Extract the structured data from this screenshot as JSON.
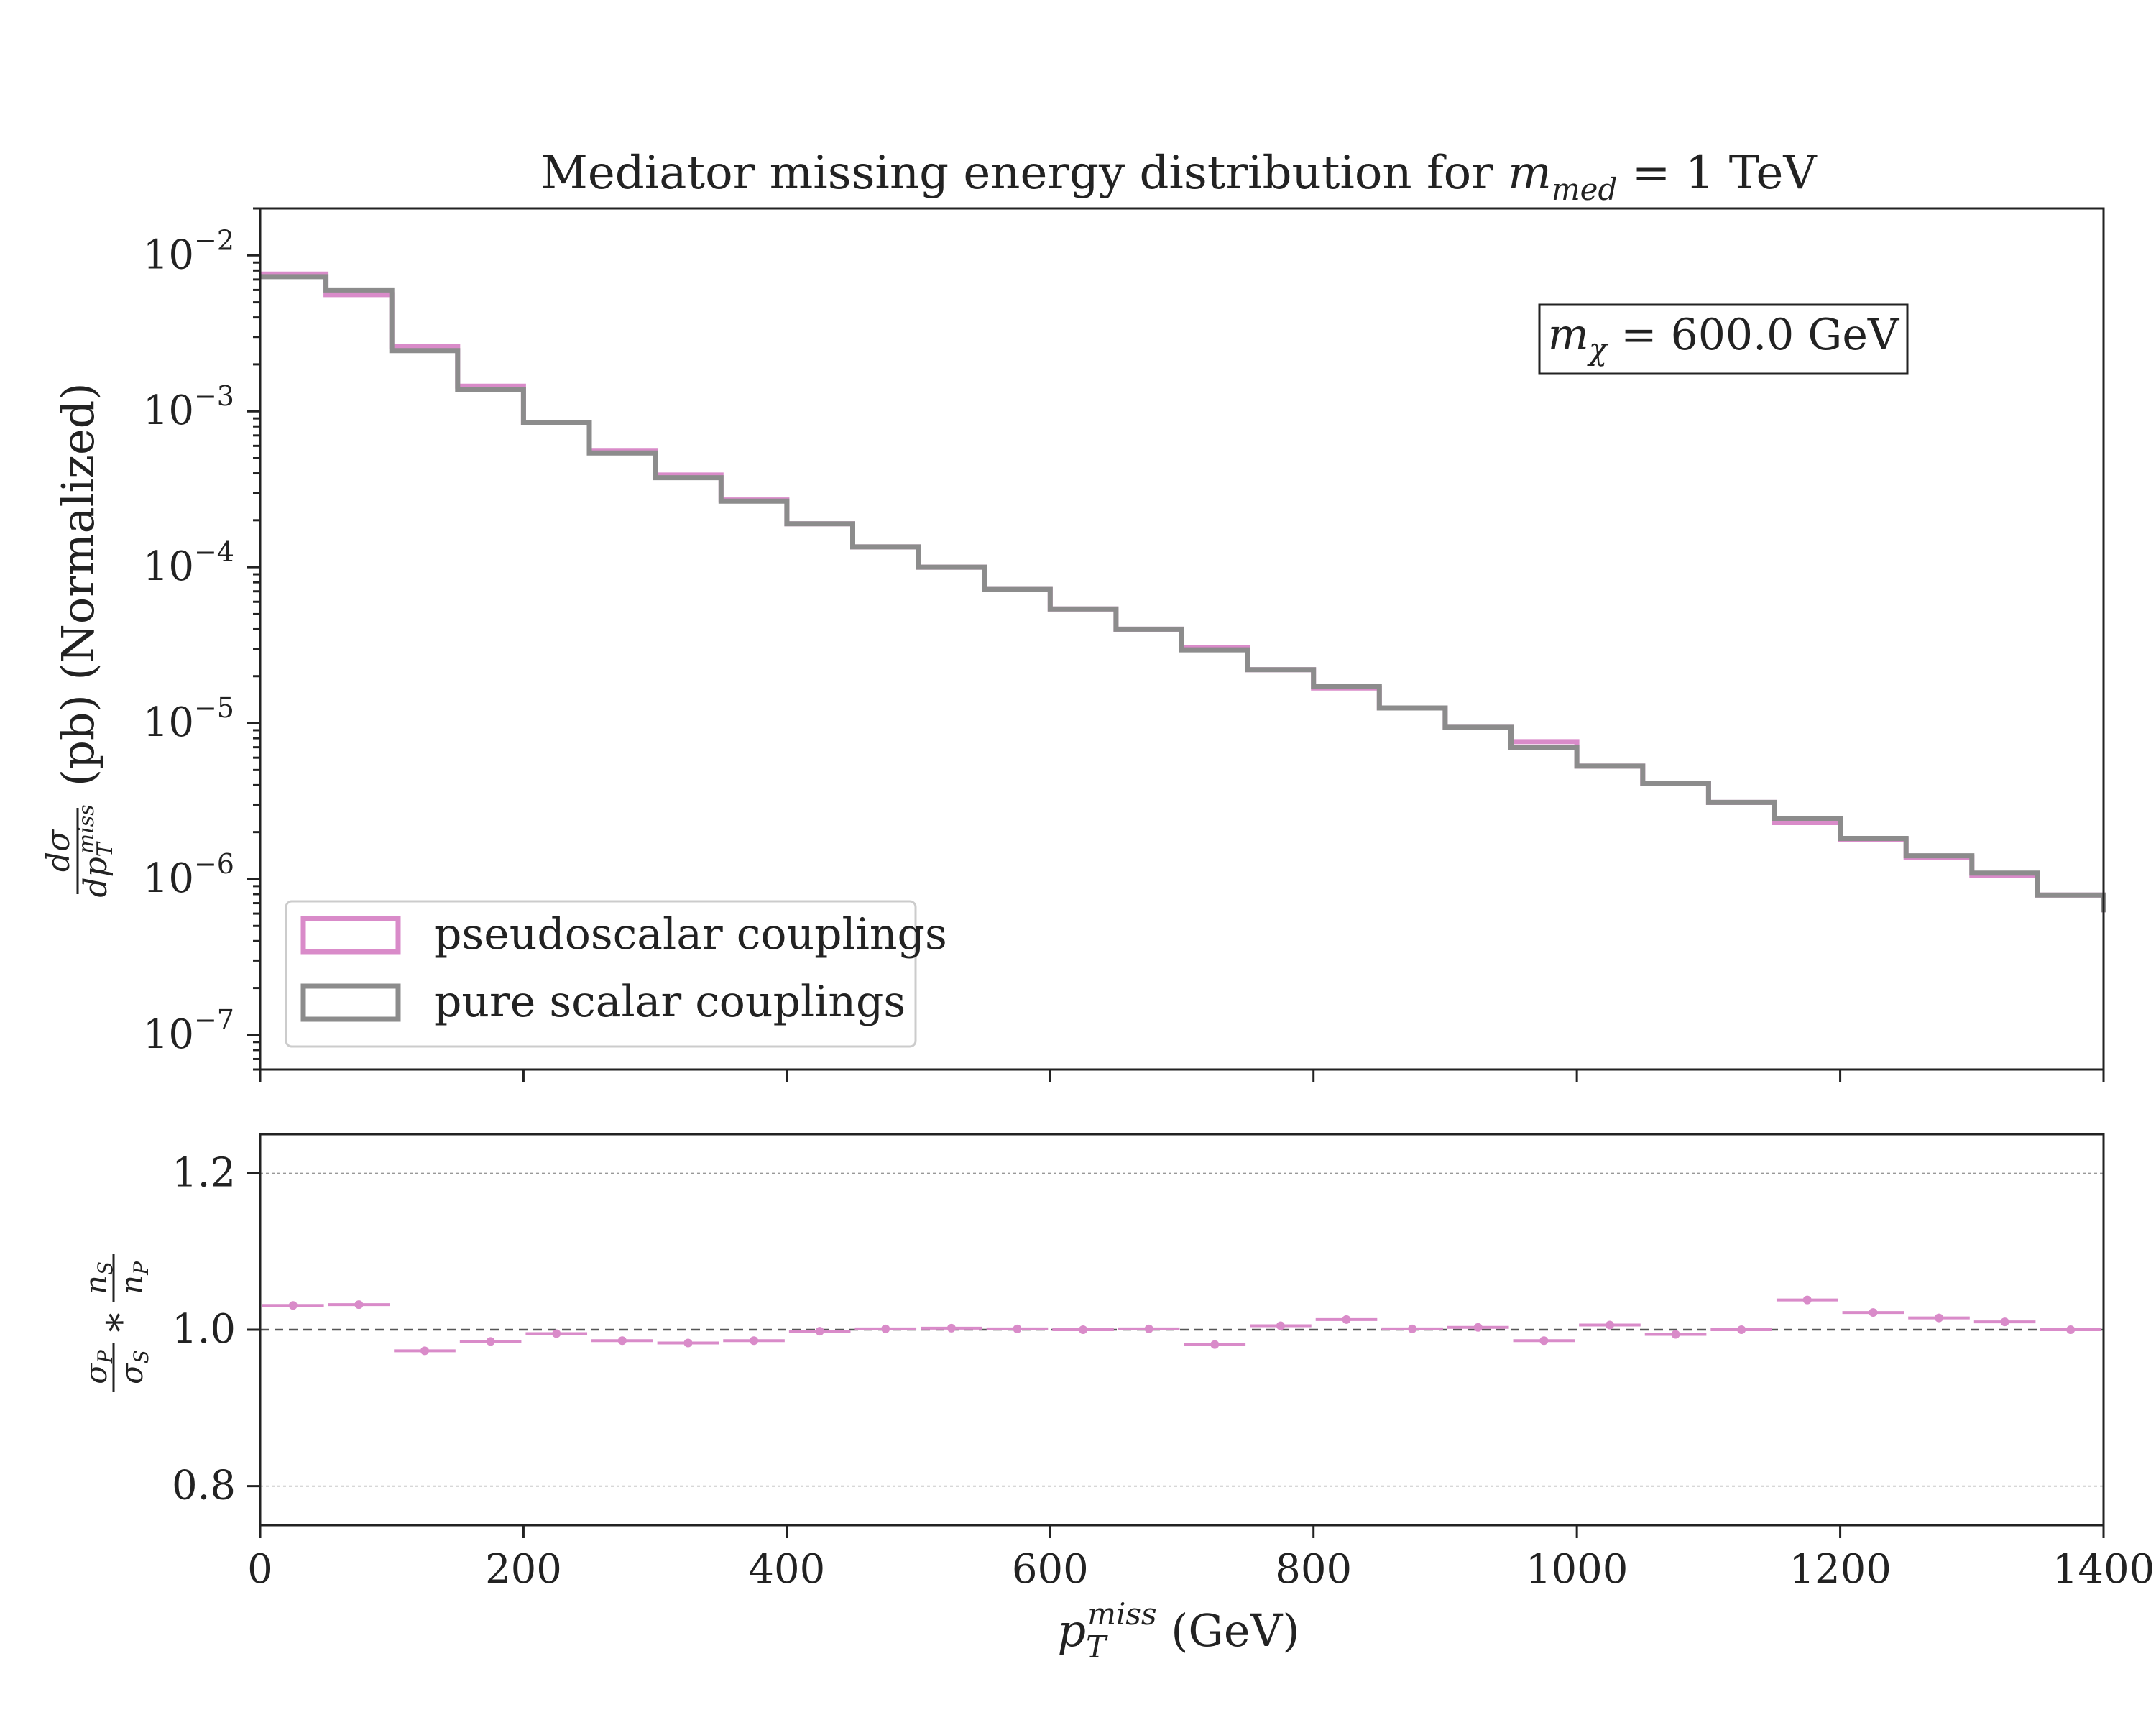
{
  "chart_data": [
    {
      "type": "line",
      "title": "Mediator missing energy distribution for m_med = 1 TeV",
      "title_parts": {
        "text": "Mediator missing energy distribution for ",
        "var": "m",
        "sub": "med",
        "tail": " = 1 TeV"
      },
      "ylabel": "dσ/dp_T^miss (pb) (Normalized)",
      "ylabel_parts": {
        "unit": "(pb) (Normalized)"
      },
      "xlabel": "",
      "yscale": "log",
      "ylim": [
        6e-08,
        0.02
      ],
      "xlim": [
        0,
        1400
      ],
      "annotation": {
        "var": "m",
        "sub": "χ",
        "tail": " = 600.0 GeV"
      },
      "legend_position": "lower-left",
      "y_tick_labels": [
        {
          "value": 0.01,
          "exp": "−2"
        },
        {
          "value": 0.001,
          "exp": "−3"
        },
        {
          "value": 0.0001,
          "exp": "−4"
        },
        {
          "value": 1e-05,
          "exp": "−5"
        },
        {
          "value": 1e-06,
          "exp": "−6"
        },
        {
          "value": 1e-07,
          "exp": "−7"
        }
      ],
      "y_tick_base": "10",
      "bin_edges": [
        0,
        50,
        100,
        150,
        200,
        250,
        300,
        350,
        400,
        450,
        500,
        550,
        600,
        650,
        700,
        750,
        800,
        850,
        900,
        950,
        1000,
        1050,
        1100,
        1150,
        1200,
        1250,
        1300,
        1350,
        1400
      ],
      "series": [
        {
          "name": "pseudoscalar couplings",
          "color": "#d98bc9",
          "values": [
            0.0076,
            0.0056,
            0.0026,
            0.00145,
            0.00085,
            0.00056,
            0.00039,
            0.00027,
            0.00019,
            0.000135,
            0.0001,
            7.2e-05,
            5.4e-05,
            4e-05,
            3.05e-05,
            2.2e-05,
            1.68e-05,
            1.25e-05,
            9.4e-06,
            7.6e-06,
            5.3e-06,
            4.1e-06,
            3.1e-06,
            2.3e-06,
            1.8e-06,
            1.38e-06,
            1.05e-06,
            7.9e-07
          ]
        },
        {
          "name": "pure scalar couplings",
          "color": "#8c8c8c",
          "values": [
            0.0073,
            0.006,
            0.00245,
            0.00138,
            0.00085,
            0.00054,
            0.000375,
            0.000265,
            0.00019,
            0.000135,
            0.0001,
            7.2e-05,
            5.4e-05,
            4e-05,
            2.95e-05,
            2.2e-05,
            1.72e-05,
            1.25e-05,
            9.4e-06,
            7e-06,
            5.3e-06,
            4.1e-06,
            3.1e-06,
            2.45e-06,
            1.82e-06,
            1.41e-06,
            1.09e-06,
            7.9e-07
          ]
        }
      ]
    },
    {
      "type": "scatter",
      "title": "",
      "ylabel": "σP/σS ∗ nS/nP",
      "xlabel": "p_T^miss (GeV)",
      "xlabel_parts": {
        "var": "p",
        "sub": "T",
        "sup": "miss",
        "unit": " (GeV)"
      },
      "xlim": [
        0,
        1400
      ],
      "ylim": [
        0.75,
        1.25
      ],
      "x_ticks": [
        "0",
        "200",
        "400",
        "600",
        "800",
        "1000",
        "1200",
        "1400"
      ],
      "y_ticks": [
        "0.8",
        "1.0",
        "1.2"
      ],
      "grid": true,
      "reference_line": 1.0,
      "series": [
        {
          "name": "",
          "color": "#d98bc9",
          "x": [
            25,
            75,
            125,
            175,
            225,
            275,
            325,
            375,
            425,
            475,
            525,
            575,
            625,
            675,
            725,
            775,
            825,
            875,
            925,
            975,
            1025,
            1075,
            1125,
            1175,
            1225,
            1275,
            1325,
            1375
          ],
          "values": [
            1.031,
            1.032,
            0.973,
            0.985,
            0.995,
            0.986,
            0.983,
            0.986,
            0.998,
            1.001,
            1.002,
            1.001,
            1.0,
            1.001,
            0.981,
            1.005,
            1.013,
            1.001,
            1.003,
            0.986,
            1.006,
            0.994,
            1.0,
            1.038,
            1.022,
            1.015,
            1.01,
            1.0
          ]
        }
      ]
    }
  ]
}
